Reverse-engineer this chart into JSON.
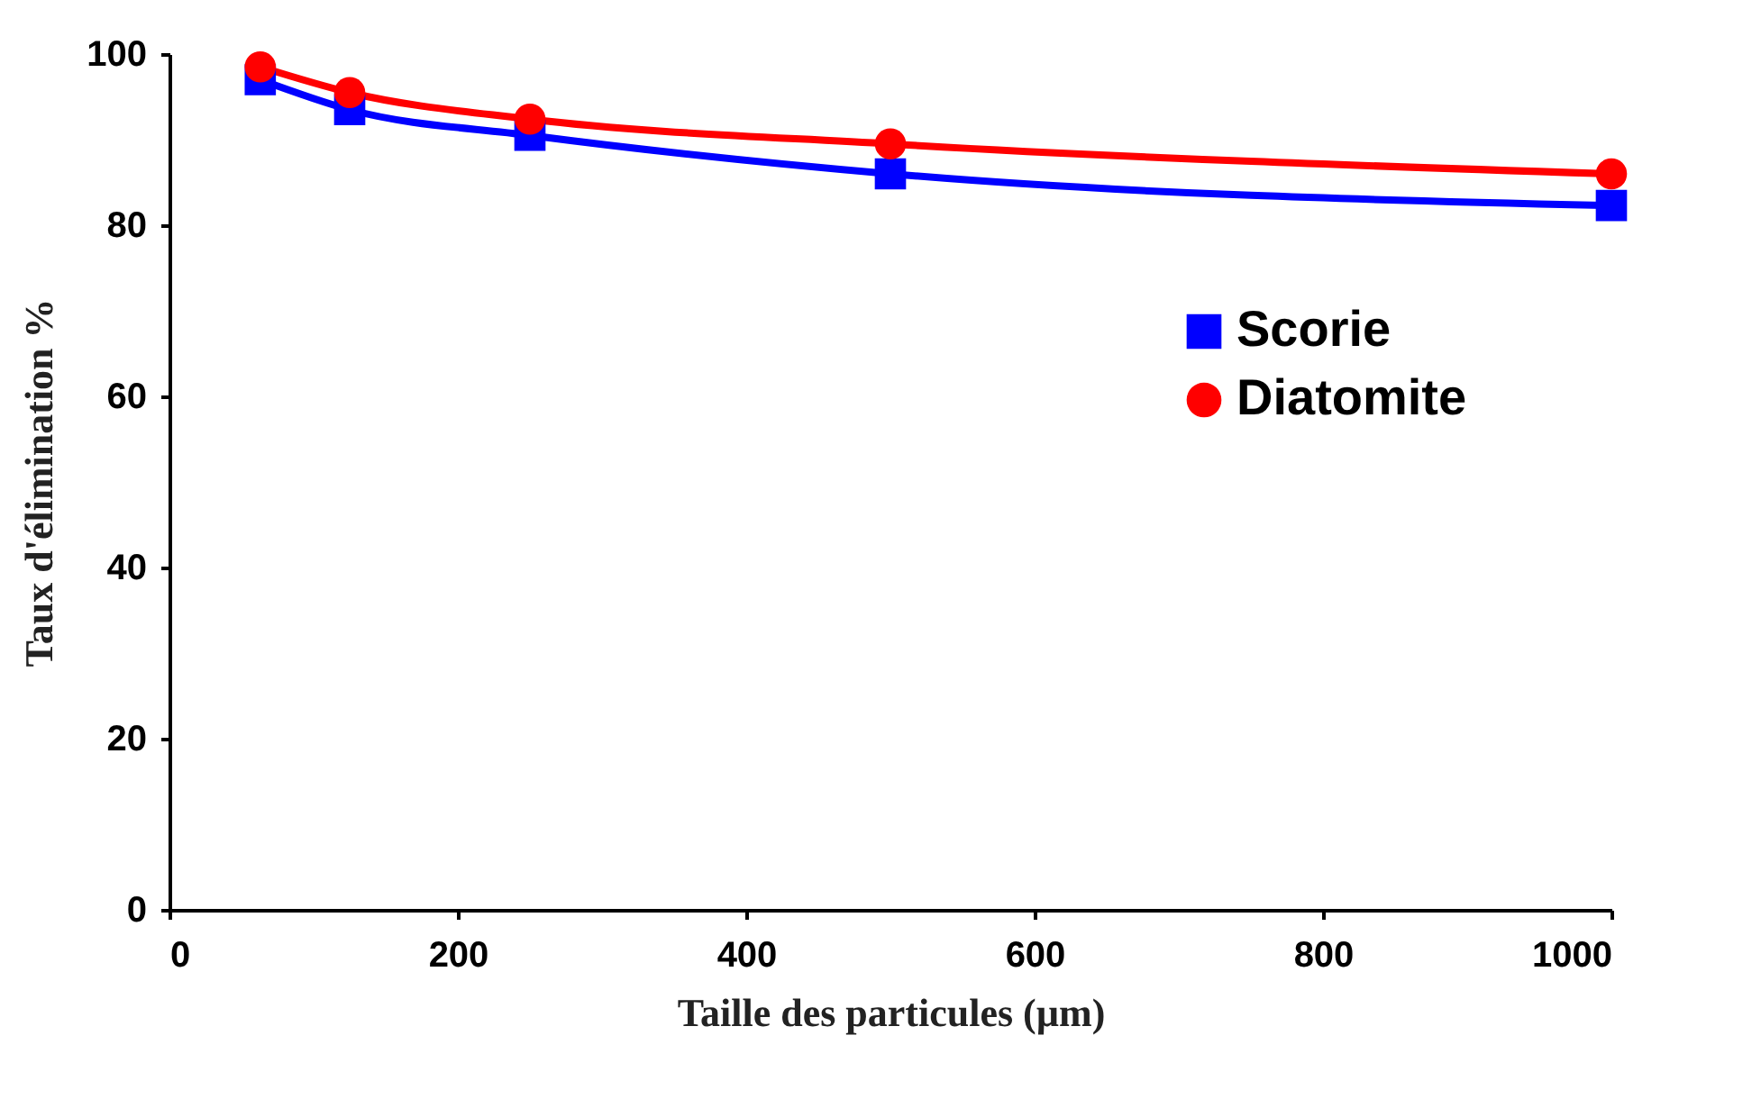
{
  "chart_data": {
    "type": "line",
    "xlabel": "Taille des particules (µm)",
    "ylabel": "Taux d'élimination  %",
    "x": [
      63,
      125,
      250,
      500,
      1000
    ],
    "series": [
      {
        "name": "Scorie",
        "color": "#0000ff",
        "marker": "square",
        "values": [
          97,
          93.5,
          90.5,
          86,
          82.3
        ]
      },
      {
        "name": "Diatomite",
        "color": "#ff0000",
        "marker": "circle",
        "values": [
          98.5,
          95.5,
          92.4,
          89.5,
          86
        ]
      }
    ],
    "xlim": [
      0,
      1000
    ],
    "xticks": [
      0,
      200,
      400,
      600,
      800,
      1000
    ],
    "ylim": [
      0,
      100
    ],
    "yticks": [
      0,
      20,
      40,
      60,
      80,
      100
    ],
    "grid": false,
    "legend": "right"
  }
}
